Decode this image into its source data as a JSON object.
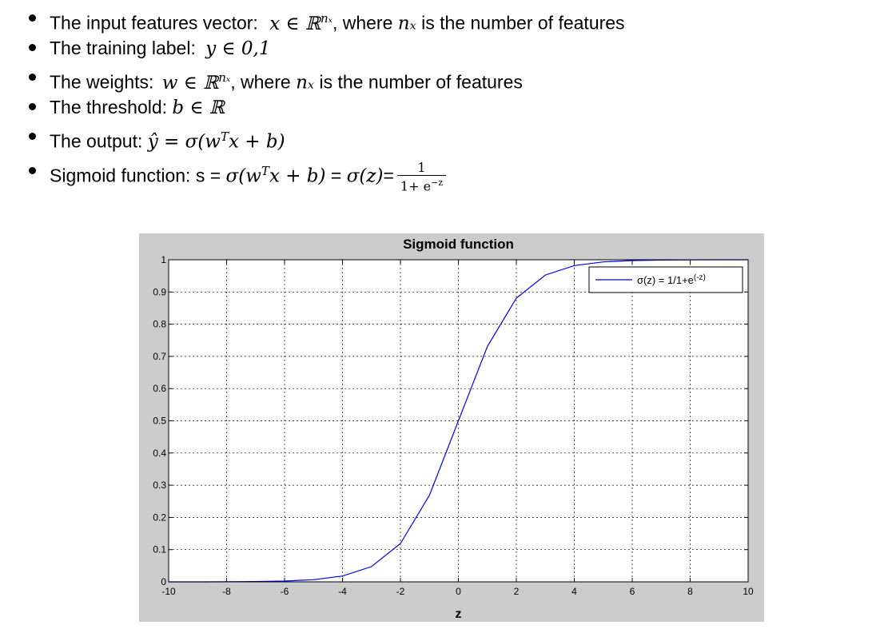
{
  "bullets": {
    "b1": {
      "label": "The input features vector:",
      "expr": "x ∈ ℝ",
      "sup": "nₓ",
      "rest": ", where",
      "nx": "nₓ",
      "tail": "is the number of features"
    },
    "b2": {
      "label": "The training label:",
      "expr": "y ∈ 0,1"
    },
    "b3": {
      "label": "The weights:",
      "expr": "w ∈ ℝ",
      "sup": "nₓ",
      "rest": ", where",
      "nx": "nₓ",
      "tail": "is the number of features"
    },
    "b4": {
      "label": "The threshold:",
      "expr": "b ∈ ℝ"
    },
    "b5": {
      "label": "The output:",
      "expr": "ŷ = σ(w",
      "sup": "T",
      "expr2": "x + b)"
    },
    "b6": {
      "label": "Sigmoid function: s =",
      "expr": "σ(w",
      "sup": "T",
      "expr2": "x + b)",
      "eq": "=",
      "expr3": "σ(z)",
      "eq2": "=",
      "num": "1",
      "den": "1+ e",
      "densup": "−z"
    }
  },
  "chart_data": {
    "type": "line",
    "title": "Sigmoid function",
    "xlabel": "z",
    "ylabel": "",
    "xlim": [
      -10,
      10
    ],
    "ylim": [
      0,
      1
    ],
    "xticks": [
      -10,
      -8,
      -6,
      -4,
      -2,
      0,
      2,
      4,
      6,
      8,
      10
    ],
    "yticks": [
      0,
      0.1,
      0.2,
      0.3,
      0.4,
      0.5,
      0.6,
      0.7,
      0.8,
      0.9,
      1
    ],
    "xtick_labels": [
      "-10",
      "-8",
      "-6",
      "-4",
      "-2",
      "0",
      "2",
      "4",
      "6",
      "8",
      "10"
    ],
    "ytick_labels": [
      "0",
      "0.1",
      "0.2",
      "0.3",
      "0.4",
      "0.5",
      "0.6",
      "0.7",
      "0.8",
      "0.9",
      "1"
    ],
    "grid": true,
    "legend_position": "top-right",
    "series": [
      {
        "name": "σ(z) = 1/1+e",
        "name_sup": "(-z)",
        "color": "#0000ff",
        "x": [
          -10,
          -9,
          -8,
          -7,
          -6,
          -5,
          -4,
          -3,
          -2,
          -1,
          0,
          1,
          2,
          3,
          4,
          5,
          6,
          7,
          8,
          9,
          10
        ],
        "y": [
          4.54e-05,
          0.000123,
          0.000335,
          0.000911,
          0.00247,
          0.00669,
          0.018,
          0.0474,
          0.1192,
          0.2689,
          0.5,
          0.7311,
          0.8808,
          0.9526,
          0.982,
          0.9933,
          0.9975,
          0.9991,
          0.9997,
          0.9999,
          1.0
        ]
      }
    ]
  }
}
